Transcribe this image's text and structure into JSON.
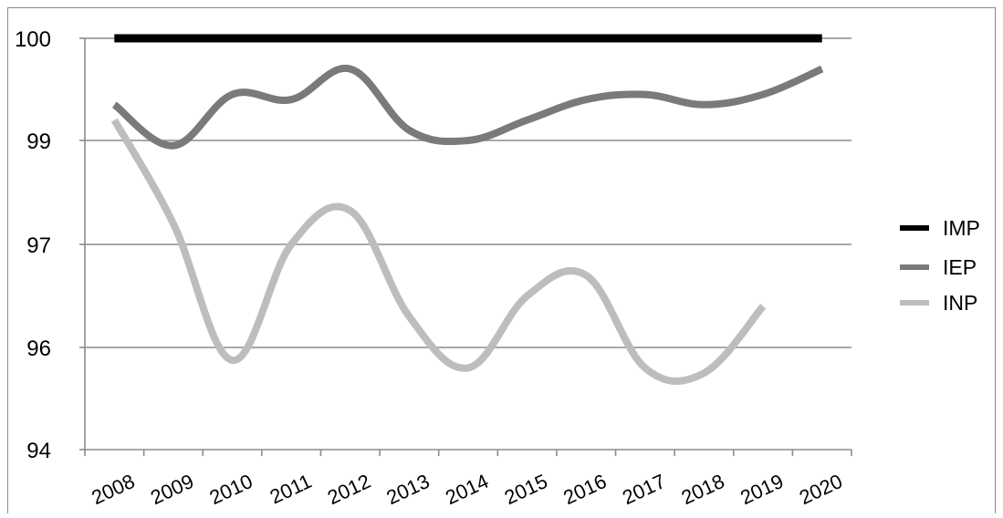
{
  "chart_data": {
    "type": "line",
    "title": "",
    "xlabel": "",
    "ylabel": "",
    "categories": [
      "2008",
      "2009",
      "2010",
      "2011",
      "2012",
      "2013",
      "2014",
      "2015",
      "2016",
      "2017",
      "2018",
      "2019",
      "2020"
    ],
    "y_ticks": [
      "94",
      "96",
      "97",
      "99",
      "100"
    ],
    "grid": true,
    "legend_position": "right",
    "series": [
      {
        "name": "IMP",
        "color": "#000000",
        "values": [
          100,
          100,
          100,
          100,
          100,
          100,
          100,
          100,
          100,
          100,
          100,
          100,
          100
        ]
      },
      {
        "name": "IEP",
        "color": "#7a7a7a",
        "values": [
          99.35,
          98.9,
          99.45,
          99.4,
          99.7,
          99.1,
          99.0,
          99.2,
          99.4,
          99.45,
          99.35,
          99.45,
          99.7
        ]
      },
      {
        "name": "INP",
        "color": "#bdbdbd",
        "values": [
          99.2,
          97.4,
          95.75,
          97.0,
          97.65,
          96.3,
          95.6,
          96.5,
          96.7,
          95.6,
          95.5,
          96.4,
          null
        ]
      }
    ]
  }
}
